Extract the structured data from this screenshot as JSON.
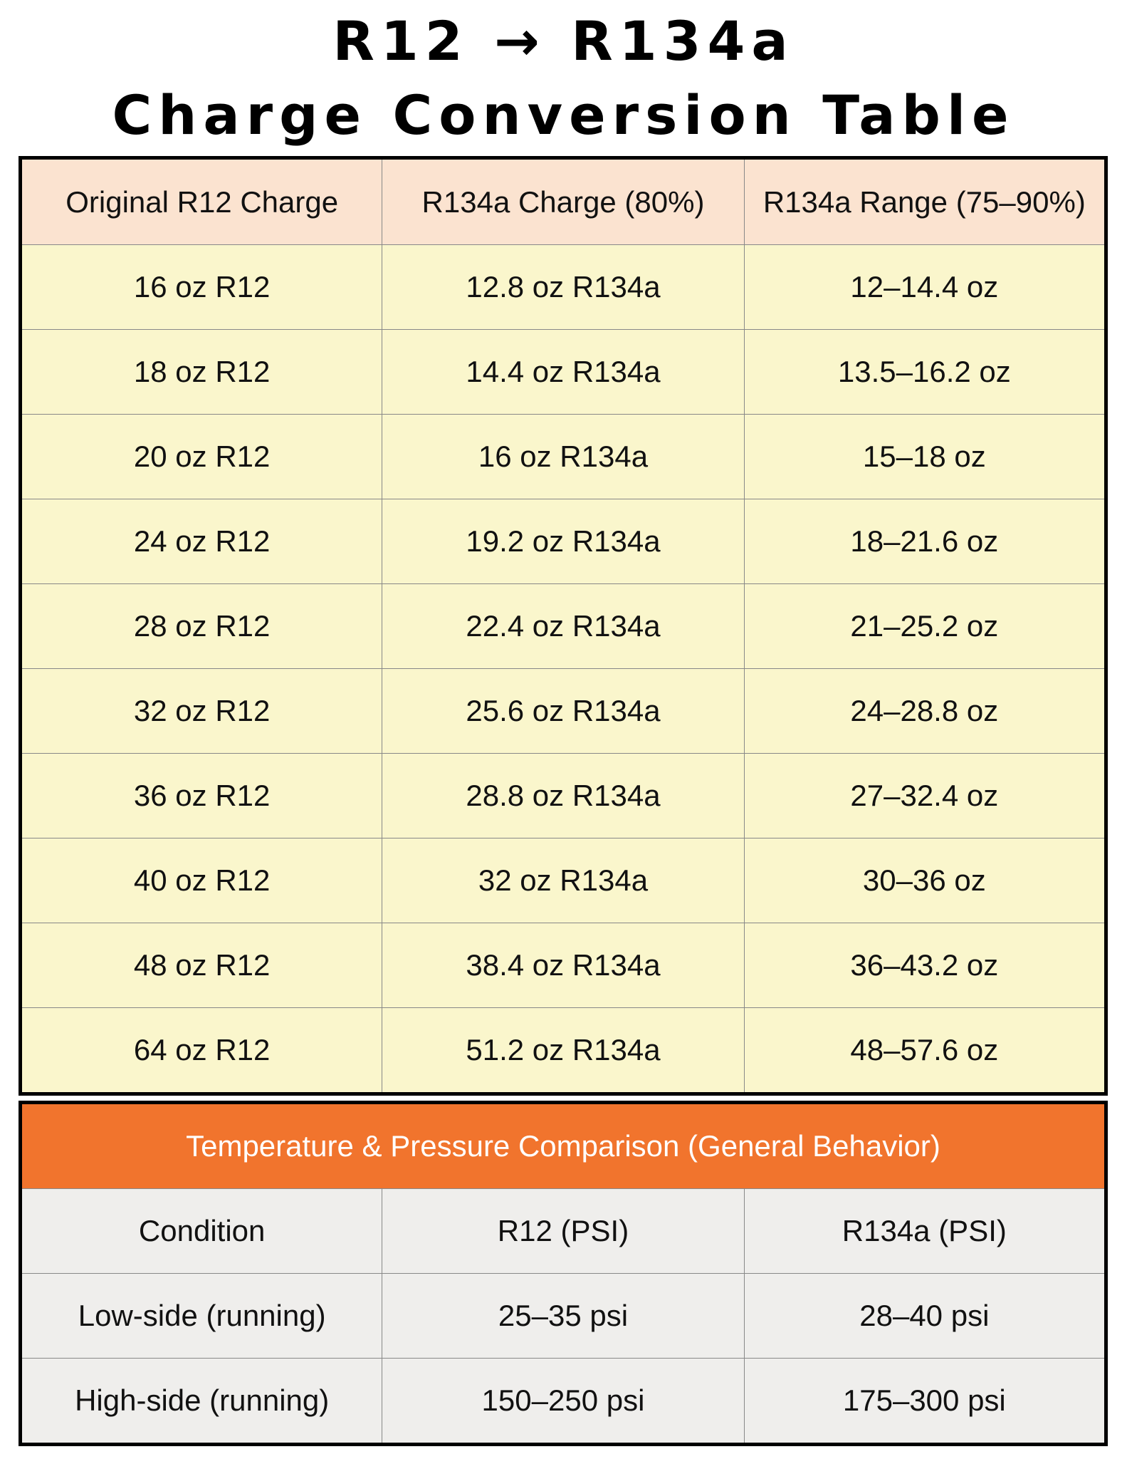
{
  "header": {
    "title_line1": "R12 → R134a",
    "title_line2": "Charge Conversion Table"
  },
  "conversion_table": {
    "headers": [
      "Original R12 Charge",
      "R134a Charge (80%)",
      "R134a Range (75–90%)"
    ],
    "rows": [
      [
        "16 oz R12",
        "12.8 oz R134a",
        "12–14.4 oz"
      ],
      [
        "18 oz R12",
        "14.4 oz R134a",
        "13.5–16.2 oz"
      ],
      [
        "20 oz R12",
        "16 oz R134a",
        "15–18 oz"
      ],
      [
        "24 oz R12",
        "19.2 oz R134a",
        "18–21.6 oz"
      ],
      [
        "28 oz R12",
        "22.4 oz R134a",
        "21–25.2 oz"
      ],
      [
        "32 oz R12",
        "25.6 oz R134a",
        "24–28.8 oz"
      ],
      [
        "36 oz R12",
        "28.8 oz R134a",
        "27–32.4 oz"
      ],
      [
        "40 oz R12",
        "32 oz R134a",
        "30–36 oz"
      ],
      [
        "48 oz R12",
        "38.4 oz R134a",
        "36–43.2 oz"
      ],
      [
        "64 oz R12",
        "51.2 oz R134a",
        "48–57.6 oz"
      ]
    ]
  },
  "pressure_table": {
    "title": "Temperature & Pressure Comparison (General Behavior)",
    "headers": [
      "Condition",
      "R12 (PSI)",
      "R134a (PSI)"
    ],
    "rows": [
      [
        "Low-side (running)",
        "25–35 psi",
        "28–40 psi"
      ],
      [
        "High-side (running)",
        "150–250 psi",
        "175–300 psi"
      ]
    ]
  }
}
